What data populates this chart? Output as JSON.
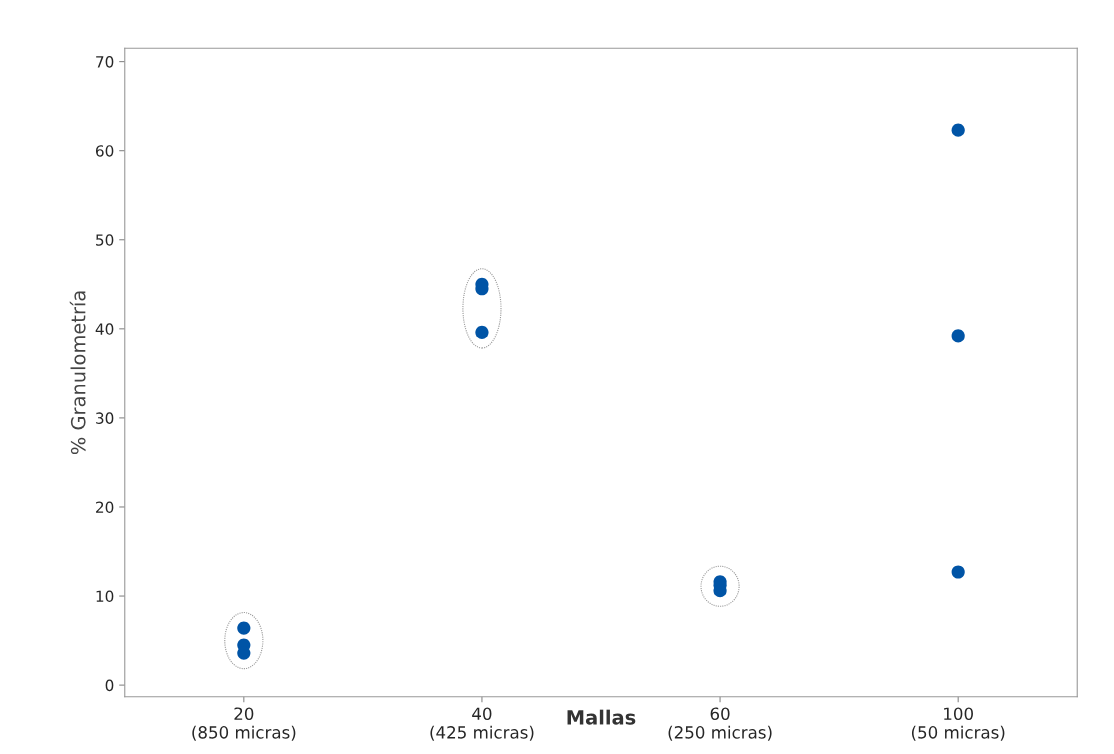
{
  "chart_data": {
    "type": "scatter",
    "xlabel": "Mallas",
    "ylabel": "% Granulometría",
    "categories": [
      "20\n(850 micras)",
      "40\n(425 micras)",
      "60\n(250 micras)",
      "100\n(50 micras)"
    ],
    "series": [
      {
        "color": "#0054a6",
        "x": [
          "20\n(850 micras)",
          "20\n(850 micras)",
          "20\n(850 micras)",
          "40\n(425 micras)",
          "40\n(425 micras)",
          "40\n(425 micras)",
          "60\n(250 micras)",
          "60\n(250 micras)",
          "60\n(250 micras)",
          "100\n(50 micras)",
          "100\n(50 micras)",
          "100\n(50 micras)"
        ],
        "values": [
          6.4,
          4.5,
          3.6,
          45.0,
          44.5,
          39.6,
          11.6,
          11.2,
          10.6,
          62.3,
          39.2,
          12.7
        ]
      }
    ],
    "ylim": [
      -1.3,
      71.5
    ],
    "yticks": [
      0,
      10,
      20,
      30,
      40,
      50,
      60,
      70
    ],
    "marker": "circle",
    "grid": false,
    "legend": false
  }
}
